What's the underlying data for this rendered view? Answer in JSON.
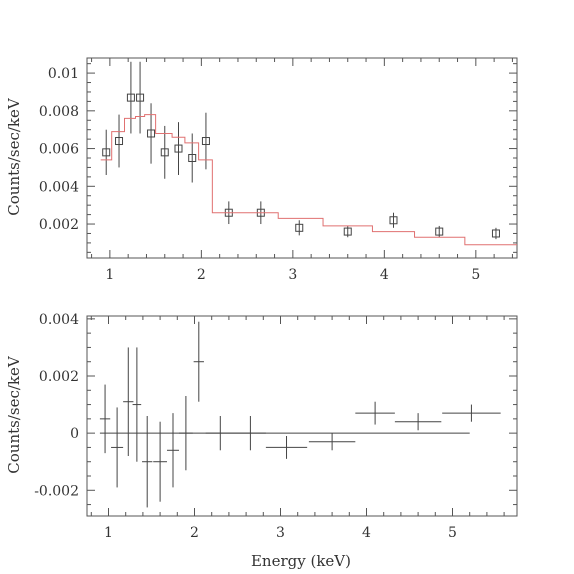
{
  "chart_data": [
    {
      "type": "scatter",
      "title": "",
      "xlabel": "",
      "ylabel": "Counts/sec/keV",
      "xlim": [
        0.75,
        5.45
      ],
      "ylim": [
        0.0002,
        0.0108
      ],
      "xticks": [
        1,
        2,
        3,
        4,
        5
      ],
      "yticks": [
        0.002,
        0.004,
        0.006,
        0.008,
        0.01
      ],
      "ytick_labels": [
        "0.002",
        "0.004",
        "0.006",
        "0.008",
        "0.01"
      ],
      "grid": false,
      "series": [
        {
          "kind": "data",
          "marker": "square",
          "points": [
            {
              "x": 0.96,
              "y": 0.0058,
              "yerr": 0.0012
            },
            {
              "x": 1.1,
              "y": 0.0064,
              "yerr": 0.0014
            },
            {
              "x": 1.23,
              "y": 0.0087,
              "yerr": 0.0019
            },
            {
              "x": 1.33,
              "y": 0.0087,
              "yerr": 0.0019
            },
            {
              "x": 1.45,
              "y": 0.0068,
              "yerr": 0.0016
            },
            {
              "x": 1.6,
              "y": 0.0058,
              "yerr": 0.0014
            },
            {
              "x": 1.75,
              "y": 0.006,
              "yerr": 0.0014
            },
            {
              "x": 1.9,
              "y": 0.0055,
              "yerr": 0.0013
            },
            {
              "x": 2.05,
              "y": 0.0064,
              "yerr": 0.0015
            },
            {
              "x": 2.3,
              "y": 0.0026,
              "yerr": 0.0006
            },
            {
              "x": 2.65,
              "y": 0.0026,
              "yerr": 0.0006
            },
            {
              "x": 3.07,
              "y": 0.0018,
              "yerr": 0.0004
            },
            {
              "x": 3.6,
              "y": 0.0016,
              "yerr": 0.0003
            },
            {
              "x": 4.1,
              "y": 0.0022,
              "yerr": 0.0004
            },
            {
              "x": 4.6,
              "y": 0.0016,
              "yerr": 0.0003
            },
            {
              "x": 5.22,
              "y": 0.0015,
              "yerr": 0.0003
            }
          ]
        },
        {
          "kind": "model",
          "color": "#e07070",
          "step_x": [
            0.9,
            1.02,
            1.16,
            1.28,
            1.38,
            1.5,
            1.68,
            1.82,
            1.97,
            2.12,
            2.47,
            2.84,
            3.33,
            3.87,
            4.33,
            4.88,
            5.45
          ],
          "step_y": [
            0.0054,
            0.0069,
            0.0076,
            0.0077,
            0.0078,
            0.0068,
            0.0066,
            0.0063,
            0.0054,
            0.0026,
            0.0026,
            0.0023,
            0.0019,
            0.0016,
            0.0013,
            0.0009
          ]
        }
      ]
    },
    {
      "type": "scatter",
      "title": "",
      "xlabel": "Energy (keV)",
      "ylabel": "Counts/sec/keV",
      "xlim": [
        0.75,
        5.75
      ],
      "ylim": [
        -0.0029,
        0.0041
      ],
      "xticks": [
        1,
        2,
        3,
        4,
        5
      ],
      "yticks": [
        -0.002,
        0,
        0.002,
        0.004
      ],
      "ytick_labels": [
        "-0.002",
        "0",
        "0.002",
        "0.004"
      ],
      "grid": false,
      "series": [
        {
          "kind": "residuals",
          "marker": "cross",
          "points": [
            {
              "x": 0.96,
              "xerr": 0.06,
              "y": 0.0005,
              "yerr": 0.0012
            },
            {
              "x": 1.1,
              "xerr": 0.07,
              "y": -0.0005,
              "yerr": 0.0014
            },
            {
              "x": 1.23,
              "xerr": 0.06,
              "y": 0.0011,
              "yerr": 0.0019
            },
            {
              "x": 1.33,
              "xerr": 0.05,
              "y": 0.001,
              "yerr": 0.002
            },
            {
              "x": 1.45,
              "xerr": 0.06,
              "y": -0.001,
              "yerr": 0.0016
            },
            {
              "x": 1.6,
              "xerr": 0.08,
              "y": -0.001,
              "yerr": 0.0014
            },
            {
              "x": 1.75,
              "xerr": 0.07,
              "y": -0.0006,
              "yerr": 0.0013
            },
            {
              "x": 1.9,
              "xerr": 0.08,
              "y": 0.0,
              "yerr": 0.0013
            },
            {
              "x": 2.05,
              "xerr": 0.06,
              "y": 0.0025,
              "yerr": 0.0014
            },
            {
              "x": 2.3,
              "xerr": 0.17,
              "y": 0.0,
              "yerr": 0.0006
            },
            {
              "x": 2.65,
              "xerr": 0.18,
              "y": 0.0,
              "yerr": 0.0006
            },
            {
              "x": 3.07,
              "xerr": 0.24,
              "y": -0.0005,
              "yerr": 0.0004
            },
            {
              "x": 3.6,
              "xerr": 0.27,
              "y": -0.0003,
              "yerr": 0.0003
            },
            {
              "x": 4.1,
              "xerr": 0.23,
              "y": 0.0007,
              "yerr": 0.0004
            },
            {
              "x": 4.6,
              "xerr": 0.27,
              "y": 0.0004,
              "yerr": 0.0003
            },
            {
              "x": 5.22,
              "xerr": 0.34,
              "y": 0.0007,
              "yerr": 0.0003
            }
          ]
        }
      ]
    }
  ]
}
